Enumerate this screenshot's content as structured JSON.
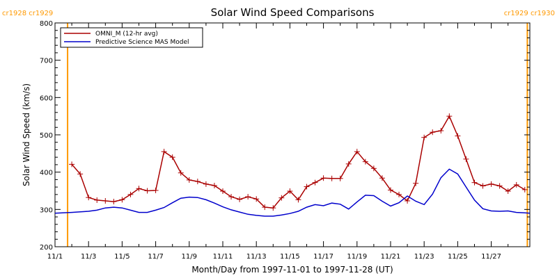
{
  "chart_data": {
    "type": "line",
    "title": "Solar Wind Speed Comparisons",
    "xlabel": "Month/Day from 1997-11-01 to 1997-11-28 (UT)",
    "ylabel": "Solar Wind Speed (km/s)",
    "xlim": [
      0,
      28.3
    ],
    "ylim": [
      200,
      800
    ],
    "x_ticks": [
      {
        "x": 0,
        "label": "11/1"
      },
      {
        "x": 2,
        "label": "11/3"
      },
      {
        "x": 4,
        "label": "11/5"
      },
      {
        "x": 6,
        "label": "11/7"
      },
      {
        "x": 8,
        "label": "11/9"
      },
      {
        "x": 10,
        "label": "11/11"
      },
      {
        "x": 12,
        "label": "11/13"
      },
      {
        "x": 14,
        "label": "11/15"
      },
      {
        "x": 16,
        "label": "11/17"
      },
      {
        "x": 18,
        "label": "11/19"
      },
      {
        "x": 20,
        "label": "11/21"
      },
      {
        "x": 22,
        "label": "11/23"
      },
      {
        "x": 24,
        "label": "11/25"
      },
      {
        "x": 26,
        "label": "11/27"
      }
    ],
    "y_ticks": [
      200,
      300,
      400,
      500,
      600,
      700,
      800
    ],
    "grid": false,
    "legend_position": "top-left",
    "carrington_markers": [
      {
        "x": 0.75,
        "labels": [
          "cr1928",
          "cr1929"
        ],
        "side": "left"
      },
      {
        "x": 28.15,
        "labels": [
          "cr1929",
          "cr1930"
        ],
        "side": "right"
      }
    ],
    "series": [
      {
        "name": "OMNI_M (12-hr avg)",
        "color": "#aa0000",
        "marker": "plus",
        "x": [
          1.0,
          1.5,
          2.0,
          2.5,
          3.0,
          3.5,
          4.0,
          4.5,
          5.0,
          5.5,
          6.0,
          6.5,
          7.0,
          7.5,
          8.0,
          8.5,
          9.0,
          9.5,
          10.0,
          10.5,
          11.0,
          11.5,
          12.0,
          12.5,
          13.0,
          13.5,
          14.0,
          14.5,
          15.0,
          15.5,
          16.0,
          16.5,
          17.0,
          17.5,
          18.0,
          18.5,
          19.0,
          19.5,
          20.0,
          20.5,
          21.0,
          21.5,
          22.0,
          22.5,
          23.0,
          23.5,
          24.0,
          24.5,
          25.0,
          25.5,
          26.0,
          26.5,
          27.0,
          27.5,
          28.0
        ],
        "y": [
          421,
          395,
          332,
          325,
          323,
          321,
          326,
          340,
          356,
          350,
          351,
          455,
          440,
          398,
          379,
          375,
          368,
          364,
          349,
          334,
          327,
          334,
          328,
          306,
          304,
          331,
          349,
          326,
          361,
          372,
          384,
          383,
          383,
          422,
          455,
          428,
          410,
          384,
          352,
          340,
          323,
          370,
          493,
          507,
          511,
          550,
          497,
          435,
          372,
          363,
          368,
          363,
          349,
          366,
          353
        ]
      },
      {
        "name": "Predictive Science MAS Model",
        "color": "#0000cc",
        "marker": "none",
        "x": [
          0.0,
          1.0,
          2.0,
          2.5,
          3.0,
          3.5,
          4.0,
          4.5,
          5.0,
          5.5,
          6.0,
          6.5,
          7.0,
          7.5,
          8.0,
          8.5,
          9.0,
          9.5,
          10.0,
          10.5,
          11.0,
          11.5,
          12.0,
          12.5,
          13.0,
          13.5,
          14.0,
          14.5,
          15.0,
          15.5,
          16.0,
          16.5,
          17.0,
          17.5,
          18.0,
          18.5,
          19.0,
          19.5,
          20.0,
          20.5,
          21.0,
          21.5,
          22.0,
          22.5,
          23.0,
          23.5,
          24.0,
          24.5,
          25.0,
          25.5,
          26.0,
          26.5,
          27.0,
          27.5,
          28.0,
          28.3
        ],
        "y": [
          290,
          292,
          295,
          298,
          304,
          306,
          304,
          298,
          292,
          292,
          298,
          305,
          318,
          330,
          333,
          332,
          326,
          317,
          307,
          299,
          293,
          287,
          284,
          282,
          282,
          285,
          289,
          295,
          306,
          313,
          310,
          317,
          314,
          301,
          320,
          338,
          337,
          322,
          309,
          318,
          336,
          322,
          313,
          341,
          385,
          408,
          395,
          360,
          325,
          302,
          296,
          295,
          296,
          292,
          291,
          290
        ]
      }
    ]
  }
}
